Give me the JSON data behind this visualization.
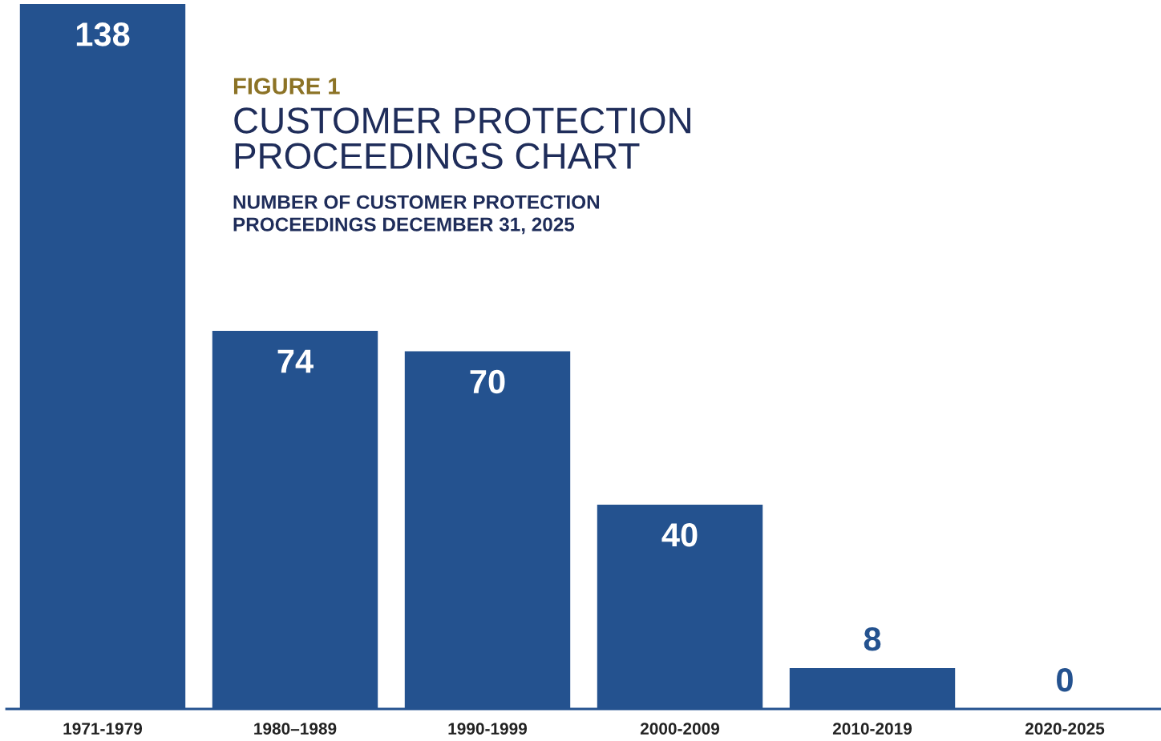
{
  "chart_data": {
    "type": "bar",
    "title": "CUSTOMER PROTECTION PROCEEDINGS CHART",
    "subtitle": "NUMBER OF CUSTOMER PROTECTION PROCEEDINGS DECEMBER 31, 2025",
    "annotations": [
      "FIGURE 1"
    ],
    "categories": [
      "1971-1979",
      "1980–1989",
      "1990-1999",
      "2000-2009",
      "2010-2019",
      "2020-2025"
    ],
    "values": [
      138,
      74,
      70,
      40,
      8,
      0
    ],
    "color": "#24528f",
    "data_labels": true,
    "grid": false,
    "legend": false
  }
}
